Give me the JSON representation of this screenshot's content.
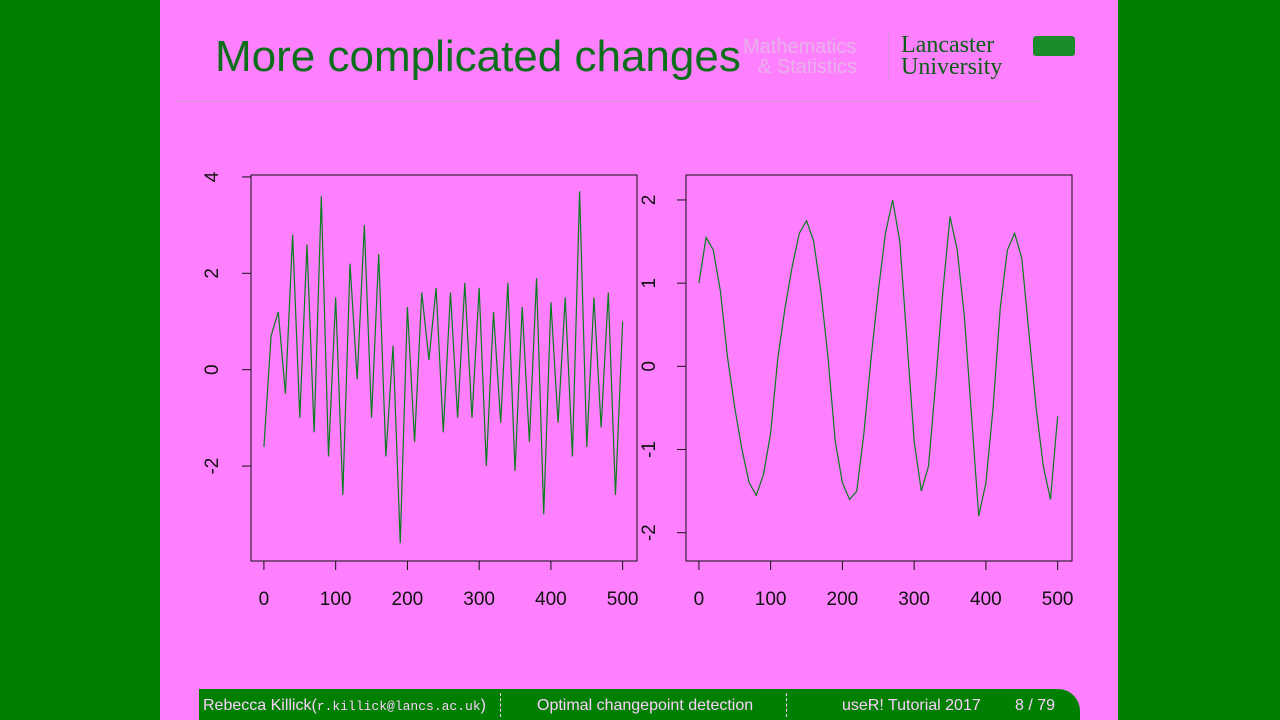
{
  "slide": {
    "title": "More complicated changes",
    "logo": {
      "dept_1": "Mathematics",
      "dept_2": "& Statistics",
      "uni_1": "Lancaster",
      "uni_2": "University"
    },
    "footer": {
      "author": "Rebecca Killick(",
      "email": "r.killick@lancs.ac.uk",
      "close": ")",
      "talk": "Optimal changepoint detection",
      "event": "useR! Tutorial 2017",
      "page": "8 / 79"
    }
  },
  "chart_data": [
    {
      "type": "line",
      "x": [
        0,
        10,
        20,
        30,
        40,
        50,
        60,
        70,
        80,
        90,
        100,
        110,
        120,
        130,
        140,
        150,
        160,
        170,
        180,
        190,
        200,
        210,
        220,
        230,
        240,
        250,
        260,
        270,
        280,
        290,
        300,
        310,
        320,
        330,
        340,
        350,
        360,
        370,
        380,
        390,
        400,
        410,
        420,
        430,
        440,
        450,
        460,
        470,
        480,
        490,
        500
      ],
      "series": [
        {
          "color": "#0a7d1e",
          "values": [
            -1.6,
            0.7,
            1.2,
            -0.5,
            2.8,
            -1.0,
            2.6,
            -1.3,
            3.6,
            -1.8,
            1.5,
            -2.6,
            2.2,
            -0.2,
            3.0,
            -1.0,
            2.4,
            -1.8,
            0.5,
            -3.6,
            1.3,
            -1.5,
            1.6,
            0.2,
            1.7,
            -1.3,
            1.6,
            -1.0,
            1.8,
            -1.0,
            1.7,
            -2.0,
            1.2,
            -1.1,
            1.8,
            -2.1,
            1.3,
            -1.5,
            1.9,
            -3.0,
            1.4,
            -1.1,
            1.5,
            -1.8,
            3.7,
            -1.6,
            1.5,
            -1.2,
            1.6,
            -2.6,
            1.0
          ]
        }
      ],
      "xlim": [
        -18,
        520
      ],
      "xticks": [
        0,
        100,
        200,
        300,
        400,
        500
      ],
      "ylim": [
        -3.97,
        4.04
      ],
      "yticks": [
        -2,
        0,
        2,
        4
      ]
    },
    {
      "type": "line",
      "x": [
        0,
        10,
        20,
        30,
        40,
        50,
        60,
        70,
        80,
        90,
        100,
        110,
        120,
        130,
        140,
        150,
        160,
        170,
        180,
        190,
        200,
        210,
        220,
        230,
        240,
        250,
        260,
        270,
        280,
        290,
        300,
        310,
        320,
        330,
        340,
        350,
        360,
        370,
        380,
        390,
        400,
        410,
        420,
        430,
        440,
        450,
        460,
        470,
        480,
        490,
        500
      ],
      "series": [
        {
          "color": "#0a7d1e",
          "values": [
            1.0,
            1.55,
            1.4,
            0.9,
            0.1,
            -0.5,
            -1.0,
            -1.4,
            -1.55,
            -1.3,
            -0.8,
            0.1,
            0.7,
            1.2,
            1.6,
            1.75,
            1.5,
            0.9,
            0.1,
            -0.9,
            -1.4,
            -1.6,
            -1.5,
            -0.8,
            0.1,
            0.9,
            1.6,
            2.0,
            1.5,
            0.3,
            -0.9,
            -1.5,
            -1.2,
            -0.2,
            0.9,
            1.8,
            1.4,
            0.6,
            -0.6,
            -1.8,
            -1.4,
            -0.5,
            0.7,
            1.4,
            1.6,
            1.3,
            0.4,
            -0.5,
            -1.2,
            -1.6,
            -0.6
          ]
        }
      ],
      "xlim": [
        -18,
        520
      ],
      "xticks": [
        0,
        100,
        200,
        300,
        400,
        500
      ],
      "ylim": [
        -2.34,
        2.3
      ],
      "yticks": [
        -2,
        -1,
        0,
        1,
        2
      ]
    }
  ]
}
